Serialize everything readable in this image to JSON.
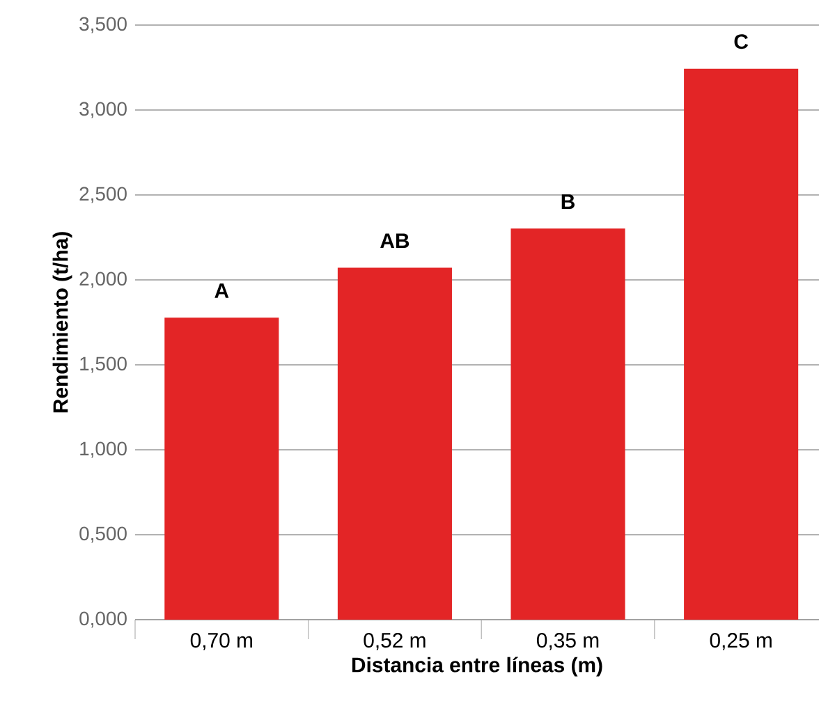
{
  "chart_data": {
    "type": "bar",
    "xlabel": "Distancia entre líneas (m)",
    "ylabel": "Rendimiento (t/ha)",
    "categories": [
      "0,70 m",
      "0,52 m",
      "0,35 m",
      "0,25 m"
    ],
    "values": [
      1.778,
      2.072,
      2.302,
      3.243
    ],
    "color": "#e32526",
    "ylim": [
      0,
      3.5
    ],
    "yticks": [
      {
        "value": 0,
        "label": "0,000"
      },
      {
        "value": 0.5,
        "label": "0,500"
      },
      {
        "value": 1,
        "label": "1,000"
      },
      {
        "value": 1.5,
        "label": "1,500"
      },
      {
        "value": 2,
        "label": "2,000"
      },
      {
        "value": 2.5,
        "label": "2,500"
      },
      {
        "value": 3,
        "label": "3,000"
      },
      {
        "value": 3.5,
        "label": "3,500"
      }
    ],
    "grid": "y",
    "annotations": [
      {
        "text": "A",
        "x": "0,70 m",
        "y": 1.778
      },
      {
        "text": "AB",
        "x": "0,52 m",
        "y": 2.072
      },
      {
        "text": "B",
        "x": "0,35 m",
        "y": 2.302
      },
      {
        "text": "C",
        "x": "0,25 m",
        "y": 3.243
      }
    ]
  }
}
